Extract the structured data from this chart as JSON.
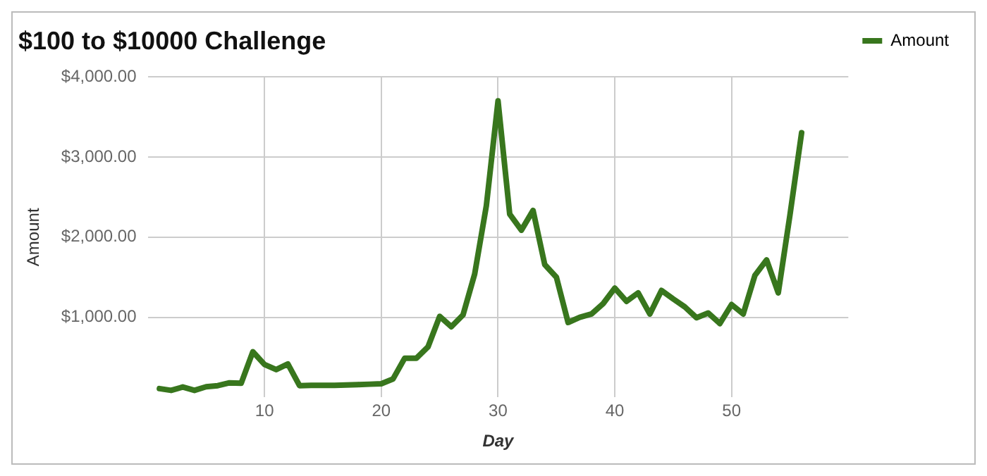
{
  "chart_data": {
    "type": "line",
    "title": "$100 to $10000 Challenge",
    "xlabel": "Day",
    "ylabel": "Amount",
    "x": [
      1,
      2,
      3,
      4,
      5,
      6,
      7,
      8,
      9,
      10,
      11,
      12,
      13,
      14,
      15,
      16,
      17,
      18,
      19,
      20,
      21,
      22,
      23,
      24,
      25,
      26,
      27,
      28,
      29,
      30,
      31,
      32,
      33,
      34,
      35,
      36,
      37,
      38,
      39,
      40,
      41,
      42,
      43,
      44,
      45,
      46,
      47,
      48,
      49,
      50,
      51,
      52,
      53,
      54,
      55,
      56
    ],
    "series": [
      {
        "name": "Amount",
        "color": "#38761d",
        "values": [
          110,
          88,
          130,
          88,
          133,
          147,
          182,
          176,
          570,
          411,
          347,
          418,
          147,
          150,
          150,
          150,
          155,
          160,
          165,
          171,
          229,
          488,
          488,
          630,
          1011,
          882,
          1029,
          1540,
          2393,
          3700,
          2287,
          2087,
          2333,
          1658,
          1499,
          935,
          1000,
          1041,
          1170,
          1364,
          1199,
          1305,
          1041,
          1335,
          1229,
          1129,
          994,
          1053,
          922,
          1159,
          1041,
          1522,
          1716,
          1305,
          2275,
          3303
        ]
      }
    ],
    "xlim": [
      0,
      60
    ],
    "xticks": [
      10,
      20,
      30,
      40,
      50
    ],
    "ylim": [
      0,
      4000
    ],
    "yticks": [
      {
        "value": 1000,
        "label": "$1,000.00"
      },
      {
        "value": 2000,
        "label": "$2,000.00"
      },
      {
        "value": 3000,
        "label": "$3,000.00"
      },
      {
        "value": 4000,
        "label": "$4,000.00"
      }
    ],
    "grid": true,
    "legend": "top right",
    "marker": "none",
    "line_style": "solid"
  }
}
